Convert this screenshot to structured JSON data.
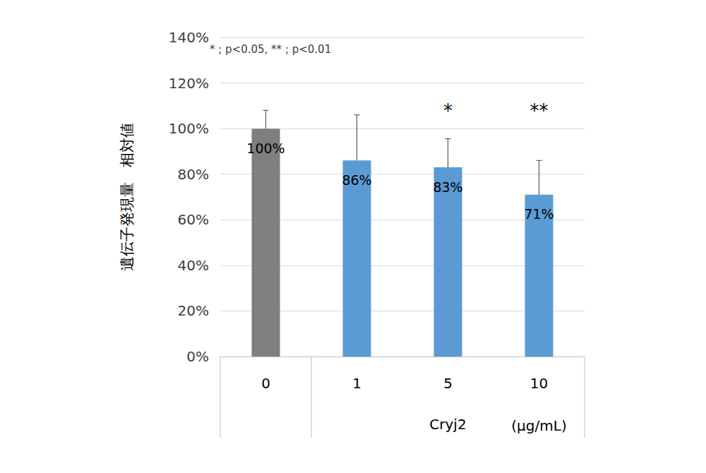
{
  "chart_data": {
    "type": "bar",
    "ylabel": "遺伝子発現量　相対値",
    "categories": [
      "0",
      "1",
      "5",
      "10"
    ],
    "values": [
      100,
      86,
      83,
      71
    ],
    "value_labels": [
      "100%",
      "86%",
      "83%",
      "71%"
    ],
    "errors": [
      8,
      20,
      12.5,
      15
    ],
    "colors": [
      "#7f7f7f",
      "#5b9bd5",
      "#5b9bd5",
      "#5b9bd5"
    ],
    "data_labels": true,
    "ylim": [
      0,
      140
    ],
    "yticks": [
      {
        "value": 0,
        "label": "0%"
      },
      {
        "value": 20,
        "label": "20%"
      },
      {
        "value": 40,
        "label": "40%"
      },
      {
        "value": 60,
        "label": "60%"
      },
      {
        "value": 80,
        "label": "80%"
      },
      {
        "value": 100,
        "label": "100%"
      },
      {
        "value": 120,
        "label": "120%"
      },
      {
        "value": 140,
        "label": "140%"
      }
    ],
    "grid": true,
    "annotations": [
      {
        "category": "5",
        "text": "*"
      },
      {
        "category": "10",
        "text": "**"
      }
    ],
    "note": "* ; p<0.05, ** ; p<0.01",
    "x_group_label": "Cryj2",
    "x_unit_label": "(μg/mL)"
  }
}
